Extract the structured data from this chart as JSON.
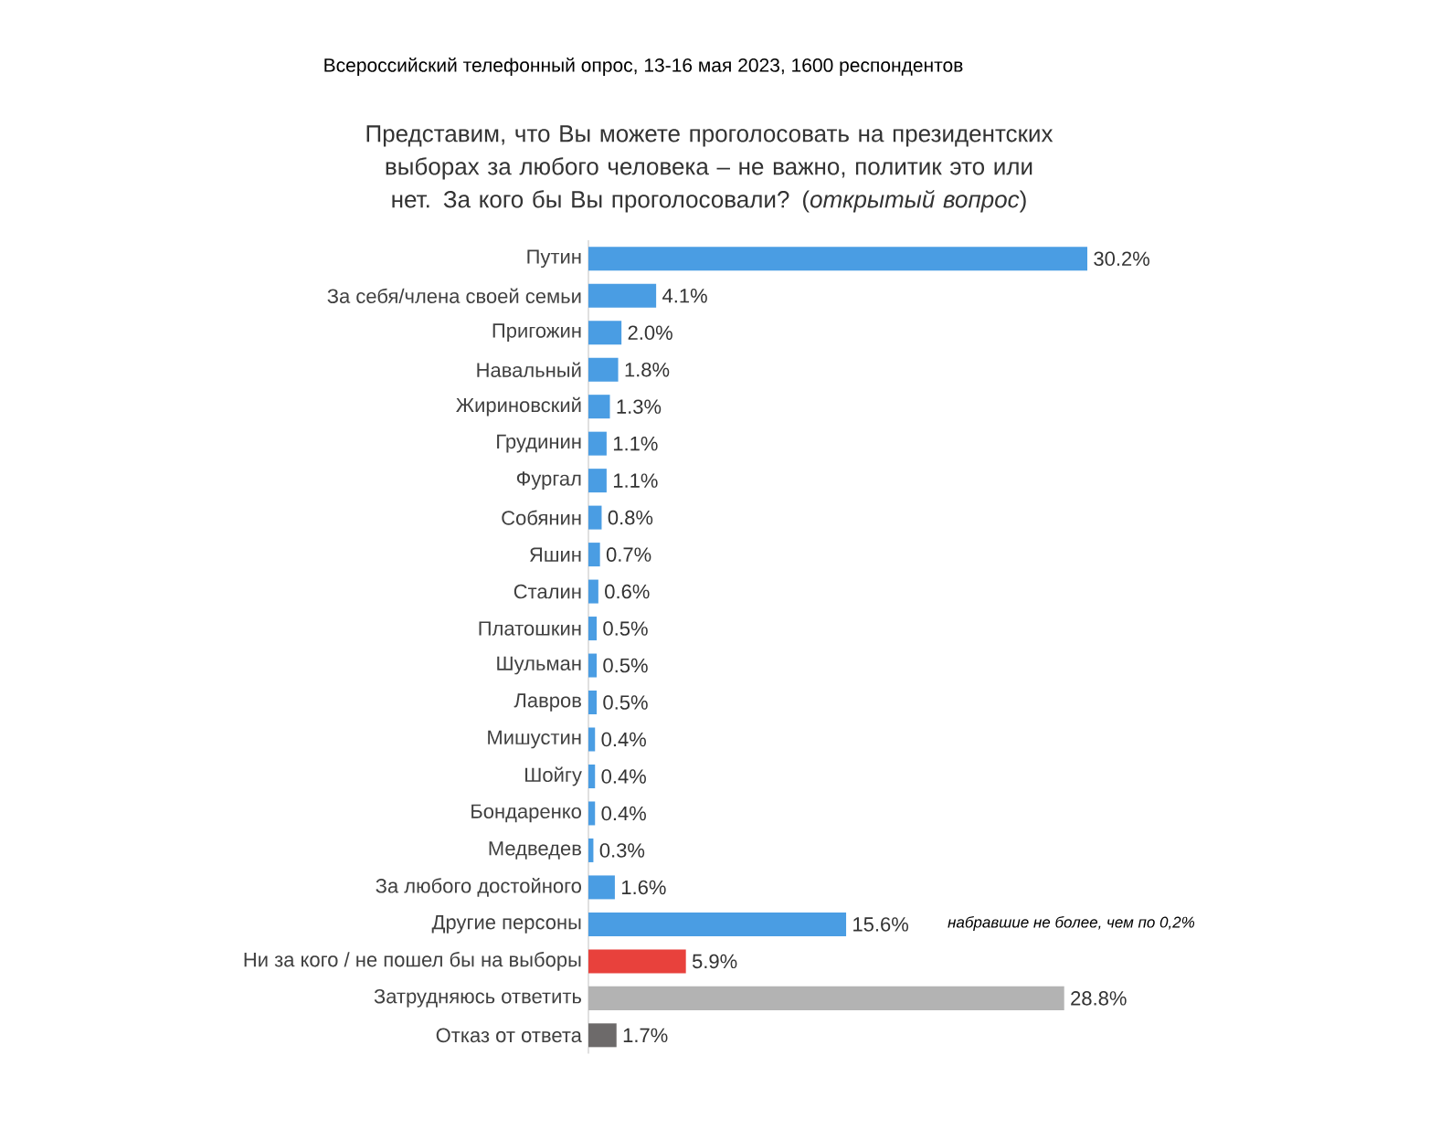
{
  "chart_data": {
    "type": "bar",
    "orientation": "horizontal",
    "title": "Всероссийский телефонный опрос, 13-16 мая 2023, 1600 респондентов",
    "subtitle": "Представим, что Вы можете проголосовать на президентских выборах за любого человека – не важно, политик это или нет. За кого бы Вы проголосовали? (*открытый вопрос*)",
    "categories": [
      "Путин",
      "За себя/члена своей семьи",
      "Пригожин",
      "Навальный",
      "Жириновский",
      "Грудинин",
      "Фургал",
      "Собянин",
      "Яшин",
      "Сталин",
      "Платошкин",
      "Шульман",
      "Лавров",
      "Мишустин",
      "Шойгу",
      "Бондаренко",
      "Медведев",
      "За любого достойного",
      "Другие персоны",
      "Ни за кого / не пошел бы на выборы",
      "Затрудняюсь ответить",
      "Отказ от ответа"
    ],
    "values": [
      30.2,
      4.1,
      2.0,
      1.8,
      1.3,
      1.1,
      1.1,
      0.8,
      0.7,
      0.6,
      0.5,
      0.5,
      0.5,
      0.4,
      0.4,
      0.4,
      0.3,
      1.6,
      15.6,
      5.9,
      28.8,
      1.7
    ],
    "value_labels": [
      "30.2%",
      "4.1%",
      "2.0%",
      "1.8%",
      "1.3%",
      "1.1%",
      "1.1%",
      "0.8%",
      "0.7%",
      "0.6%",
      "0.5%",
      "0.5%",
      "0.5%",
      "0.4%",
      "0.4%",
      "0.4%",
      "0.3%",
      "1.6%",
      "15.6%",
      "5.9%",
      "28.8%",
      "1.7%"
    ],
    "colors": [
      "#4a9de3",
      "#4a9de3",
      "#4a9de3",
      "#4a9de3",
      "#4a9de3",
      "#4a9de3",
      "#4a9de3",
      "#4a9de3",
      "#4a9de3",
      "#4a9de3",
      "#4a9de3",
      "#4a9de3",
      "#4a9de3",
      "#4a9de3",
      "#4a9de3",
      "#4a9de3",
      "#4a9de3",
      "#4a9de3",
      "#4a9de3",
      "#e8413c",
      "#b3b3b3",
      "#6d6a6a"
    ],
    "annotations": [
      "набравшие не более, чем по 0,2%"
    ]
  }
}
